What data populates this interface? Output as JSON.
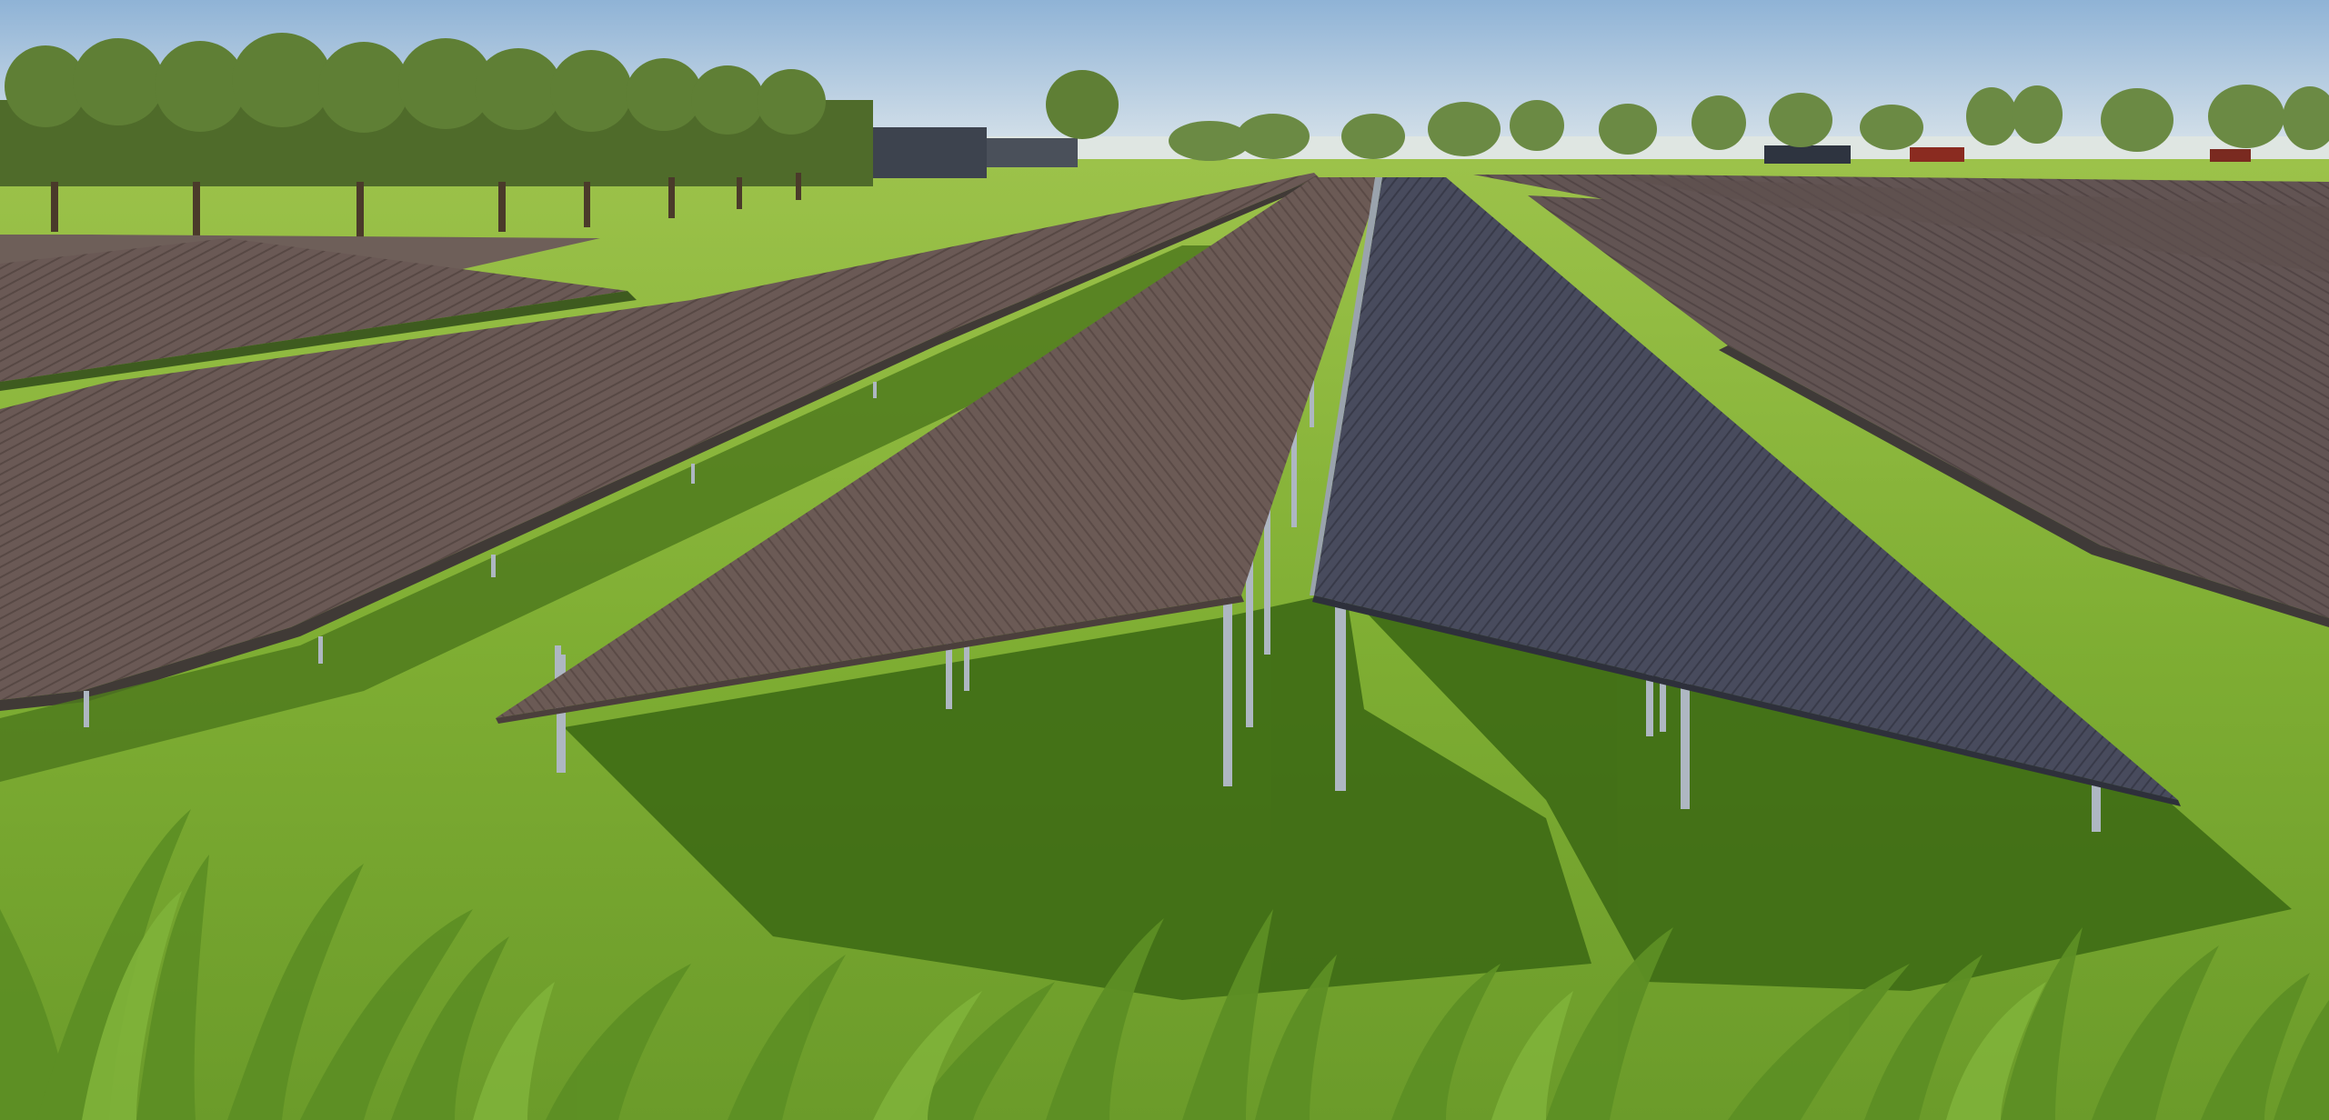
{
  "scene": {
    "colors": {
      "sky_top": "#8fb3d6",
      "sky_bottom": "#e9eef0",
      "grass_light": "#8ab83a",
      "grass_dark": "#5f8f22",
      "shadow": "#3e6b15",
      "panel_brown": "#6b5a55",
      "panel_brown_dark": "#574844",
      "panel_blue": "#474a5c",
      "panel_blue_dark": "#383a49",
      "post": "#aeb7c2",
      "tree_canopy": "#5a7a2f",
      "building": "#3f4550"
    }
  }
}
